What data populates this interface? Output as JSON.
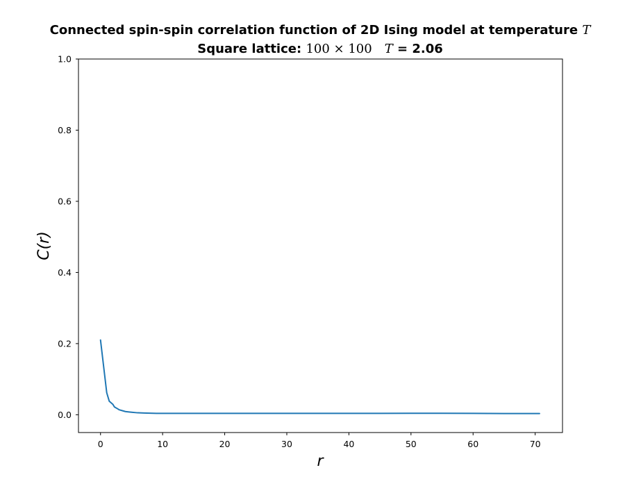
{
  "chart_data": {
    "type": "line",
    "title": {
      "line1_text": "Connected spin-spin correlation function of 2D Ising model at temperature ",
      "line1_math": "T",
      "line2_prefix": "Square lattice: ",
      "line2_size": "100 × 100",
      "line2_math": "T",
      "line2_value": " = 2.06"
    },
    "xlabel": "r",
    "ylabel": "C(r)",
    "xlim": [
      -3.55,
      74.4
    ],
    "ylim": [
      -0.05,
      1.0
    ],
    "xticks": [
      0,
      10,
      20,
      30,
      40,
      50,
      60,
      70
    ],
    "yticks": [
      0.0,
      0.2,
      0.4,
      0.6,
      0.8,
      1.0
    ],
    "xtick_labels": [
      "0",
      "10",
      "20",
      "30",
      "40",
      "50",
      "60",
      "70"
    ],
    "ytick_labels": [
      "0.0",
      "0.2",
      "0.4",
      "0.6",
      "0.8",
      "1.0"
    ],
    "series": [
      {
        "name": "C(r)",
        "color": "#1f77b4",
        "x": [
          0,
          1,
          1.41,
          2,
          2.24,
          2.83,
          3,
          3.61,
          4,
          4.47,
          5,
          5.66,
          6,
          7,
          8,
          9,
          10,
          12,
          15,
          20,
          25,
          30,
          35,
          40,
          45,
          50,
          55,
          60,
          65,
          70,
          70.7
        ],
        "y": [
          0.21,
          0.062,
          0.038,
          0.029,
          0.022,
          0.016,
          0.014,
          0.011,
          0.009,
          0.008,
          0.007,
          0.006,
          0.0055,
          0.005,
          0.0045,
          0.004,
          0.004,
          0.004,
          0.0038,
          0.0038,
          0.0038,
          0.0038,
          0.0038,
          0.004,
          0.004,
          0.0042,
          0.0042,
          0.004,
          0.0035,
          0.0035,
          0.0035
        ]
      }
    ]
  }
}
